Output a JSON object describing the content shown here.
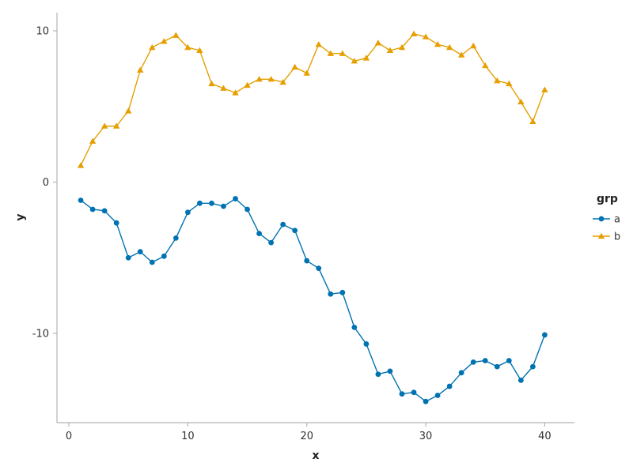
{
  "chart_data": {
    "type": "line",
    "xlabel": "x",
    "ylabel": "y",
    "xlim": [
      -1,
      42.5
    ],
    "ylim": [
      -15.9,
      11.2
    ],
    "xticks": [
      0,
      10,
      20,
      30,
      40
    ],
    "yticks": [
      -10,
      0,
      10
    ],
    "grid": false,
    "legend": {
      "title": "grp",
      "position": "right"
    },
    "x": [
      1,
      2,
      3,
      4,
      5,
      6,
      7,
      8,
      9,
      10,
      11,
      12,
      13,
      14,
      15,
      16,
      17,
      18,
      19,
      20,
      21,
      22,
      23,
      24,
      25,
      26,
      27,
      28,
      29,
      30,
      31,
      32,
      33,
      34,
      35,
      36,
      37,
      38,
      39,
      40
    ],
    "series": [
      {
        "name": "a",
        "color": "#0072B2",
        "marker": "circle",
        "values": [
          -1.2,
          -1.8,
          -1.9,
          -2.7,
          -5.0,
          -4.6,
          -5.3,
          -4.9,
          -3.7,
          -2.0,
          -1.4,
          -1.4,
          -1.6,
          -1.1,
          -1.8,
          -3.4,
          -4.0,
          -2.8,
          -3.2,
          -5.2,
          -5.7,
          -7.4,
          -7.3,
          -9.6,
          -10.7,
          -12.7,
          -12.5,
          -14.0,
          -13.9,
          -14.5,
          -14.1,
          -13.5,
          -12.6,
          -11.9,
          -11.8,
          -12.2,
          -11.8,
          -13.1,
          -12.2,
          -10.1
        ]
      },
      {
        "name": "b",
        "color": "#E69F00",
        "marker": "triangle",
        "values": [
          1.1,
          2.7,
          3.7,
          3.7,
          4.7,
          7.4,
          8.9,
          9.3,
          9.7,
          8.9,
          8.7,
          6.5,
          6.2,
          5.9,
          6.4,
          6.8,
          6.8,
          6.6,
          7.6,
          7.2,
          9.1,
          8.5,
          8.5,
          8.0,
          8.2,
          9.2,
          8.7,
          8.9,
          9.8,
          9.6,
          9.1,
          8.9,
          8.4,
          9.0,
          7.7,
          6.7,
          6.5,
          5.3,
          4.0,
          6.1
        ]
      }
    ]
  }
}
